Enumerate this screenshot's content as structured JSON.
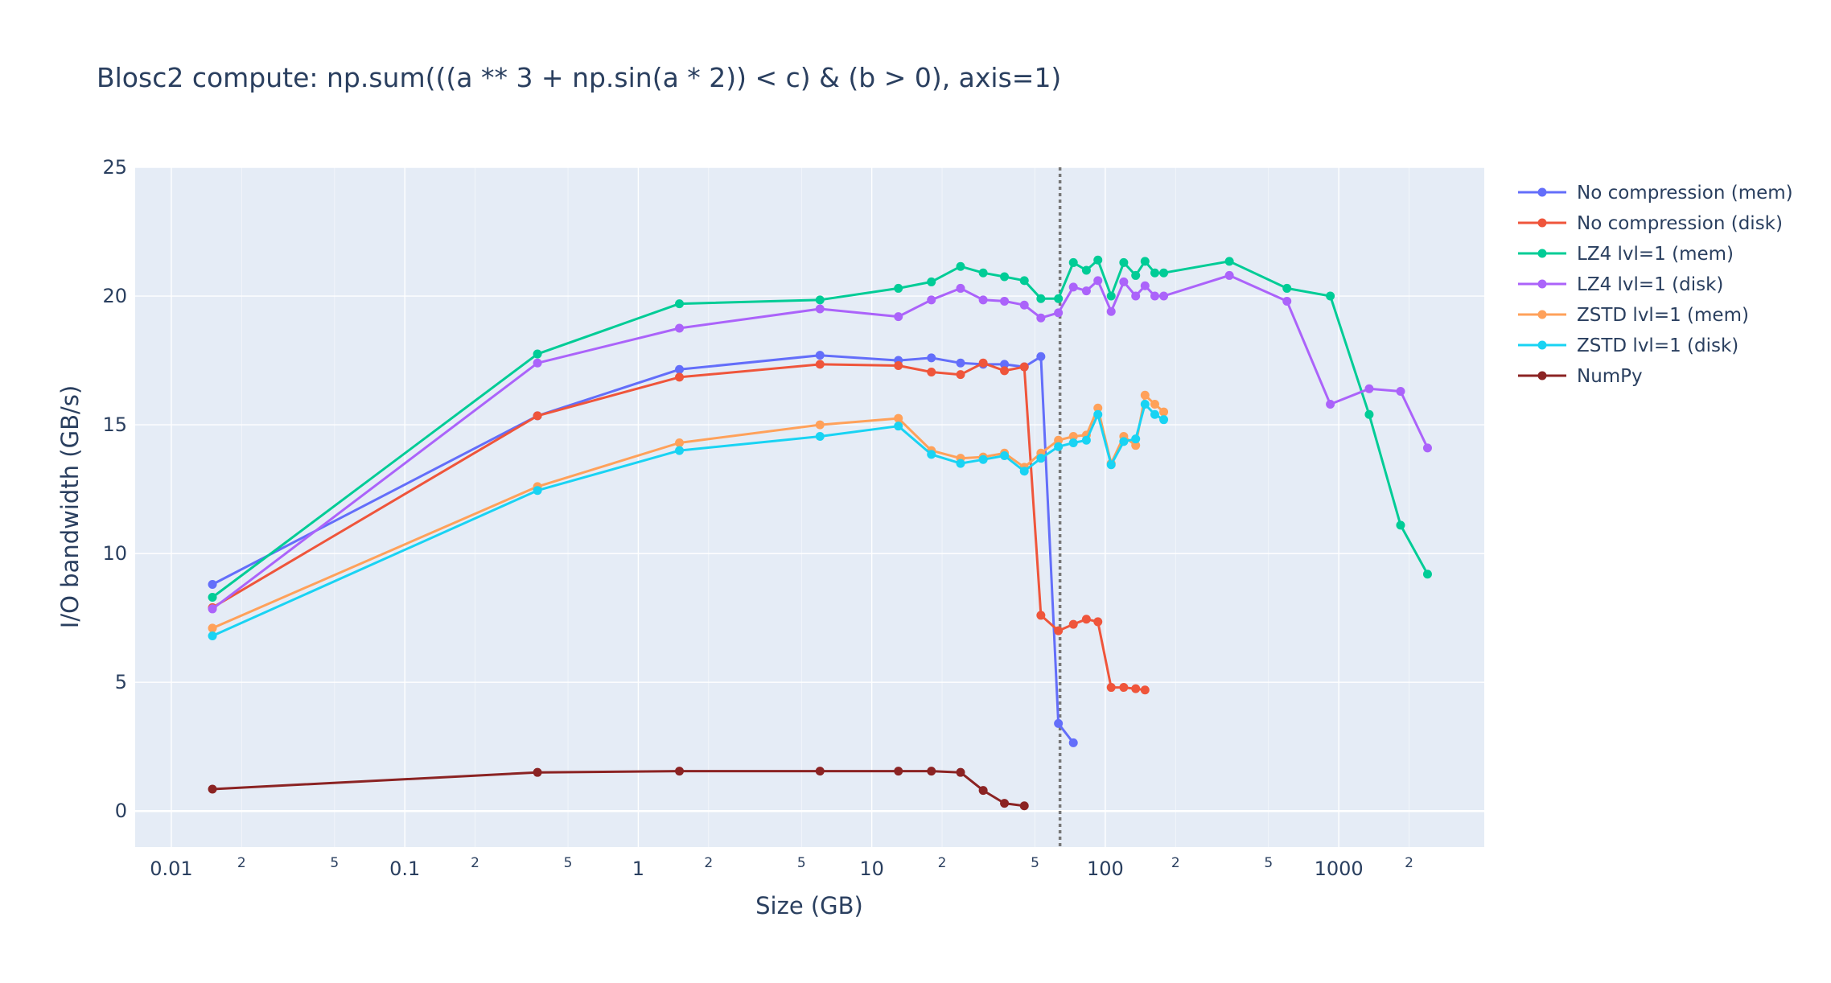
{
  "chart_data": {
    "type": "line",
    "title": "Blosc2 compute: np.sum(((a ** 3 + np.sin(a * 2)) < c) & (b > 0), axis=1)",
    "xlabel": "Size (GB)",
    "ylabel": "I/O bandwidth (GB/s)",
    "xscale": "log",
    "xlim": [
      0.007,
      4200
    ],
    "ylim": [
      -1.4,
      25
    ],
    "grid": true,
    "legend_position": "right",
    "vline": {
      "x": 64,
      "style": "dotted",
      "color": "#777777"
    },
    "xticks": [
      "0.01",
      "0.1",
      "1",
      "10",
      "100",
      "1000"
    ],
    "xtick_values": [
      0.01,
      0.1,
      1,
      10,
      100,
      1000
    ],
    "xminor_ticks": [
      "2",
      "5",
      "2",
      "5",
      "2",
      "5",
      "2",
      "5",
      "2",
      "5",
      "2"
    ],
    "xminor_values": [
      0.02,
      0.05,
      0.2,
      0.5,
      2,
      5,
      20,
      50,
      200,
      500,
      2000
    ],
    "yticks": [
      "0",
      "5",
      "10",
      "15",
      "20",
      "25"
    ],
    "ytick_values": [
      0,
      5,
      10,
      15,
      20,
      25
    ],
    "series": [
      {
        "name": "No compression (mem)",
        "color": "#636efa",
        "x": [
          0.015,
          0.37,
          1.5,
          6,
          13,
          18,
          24,
          30,
          37,
          45,
          53,
          63,
          73
        ],
        "y": [
          8.8,
          15.35,
          17.15,
          17.7,
          17.5,
          17.6,
          17.4,
          17.35,
          17.35,
          17.25,
          17.65,
          3.4,
          2.65
        ]
      },
      {
        "name": "No compression (disk)",
        "color": "#ef553b",
        "x": [
          0.015,
          0.37,
          1.5,
          6,
          13,
          18,
          24,
          30,
          37,
          45,
          53,
          63,
          73,
          83,
          93,
          106,
          120,
          135,
          148
        ],
        "y": [
          7.9,
          15.35,
          16.85,
          17.35,
          17.3,
          17.05,
          16.95,
          17.4,
          17.1,
          17.25,
          7.6,
          7.0,
          7.25,
          7.45,
          7.35,
          4.8,
          4.8,
          4.75,
          4.7
        ]
      },
      {
        "name": "LZ4 lvl=1 (mem)",
        "color": "#00cc96",
        "x": [
          0.015,
          0.37,
          1.5,
          6,
          13,
          18,
          24,
          30,
          37,
          45,
          53,
          63,
          73,
          83,
          93,
          106,
          120,
          135,
          148,
          163,
          178,
          340,
          600,
          920,
          1350,
          1840,
          2400
        ],
        "y": [
          8.3,
          17.75,
          19.7,
          19.85,
          20.3,
          20.55,
          21.15,
          20.9,
          20.75,
          20.6,
          19.9,
          19.9,
          21.3,
          21.0,
          21.4,
          20.0,
          21.3,
          20.8,
          21.35,
          20.9,
          20.9,
          21.35,
          20.3,
          20.0,
          15.4,
          11.1,
          9.2
        ]
      },
      {
        "name": "LZ4 lvl=1 (disk)",
        "color": "#ab63fa",
        "x": [
          0.015,
          0.37,
          1.5,
          6,
          13,
          18,
          24,
          30,
          37,
          45,
          53,
          63,
          73,
          83,
          93,
          106,
          120,
          135,
          148,
          163,
          178,
          340,
          600,
          920,
          1350,
          1840,
          2400
        ],
        "y": [
          7.85,
          17.4,
          18.75,
          19.5,
          19.2,
          19.85,
          20.3,
          19.85,
          19.8,
          19.65,
          19.15,
          19.35,
          20.35,
          20.2,
          20.6,
          19.4,
          20.55,
          20.0,
          20.4,
          20.0,
          20.0,
          20.8,
          19.8,
          15.8,
          16.4,
          16.3,
          14.1
        ]
      },
      {
        "name": "ZSTD lvl=1 (mem)",
        "color": "#ffa15a",
        "x": [
          0.015,
          0.37,
          1.5,
          6,
          13,
          18,
          24,
          30,
          37,
          45,
          53,
          63,
          73,
          83,
          93,
          106,
          120,
          135,
          148,
          163,
          178
        ],
        "y": [
          7.1,
          12.6,
          14.3,
          15.0,
          15.25,
          14.0,
          13.7,
          13.75,
          13.9,
          13.35,
          13.9,
          14.4,
          14.55,
          14.6,
          15.65,
          13.5,
          14.55,
          14.2,
          16.15,
          15.8,
          15.5
        ]
      },
      {
        "name": "ZSTD lvl=1 (disk)",
        "color": "#19d3f3",
        "x": [
          0.015,
          0.37,
          1.5,
          6,
          13,
          18,
          24,
          30,
          37,
          45,
          53,
          63,
          73,
          83,
          93,
          106,
          120,
          135,
          148,
          163,
          178
        ],
        "y": [
          6.8,
          12.45,
          14.0,
          14.55,
          14.95,
          13.85,
          13.5,
          13.65,
          13.8,
          13.2,
          13.7,
          14.15,
          14.3,
          14.4,
          15.4,
          13.45,
          14.35,
          14.45,
          15.8,
          15.4,
          15.2
        ]
      },
      {
        "name": "NumPy",
        "color": "#8b2323",
        "x": [
          0.015,
          0.37,
          1.5,
          6,
          13,
          18,
          24,
          30,
          37,
          45
        ],
        "y": [
          0.85,
          1.5,
          1.55,
          1.55,
          1.55,
          1.55,
          1.5,
          0.8,
          0.3,
          0.2
        ]
      }
    ]
  }
}
